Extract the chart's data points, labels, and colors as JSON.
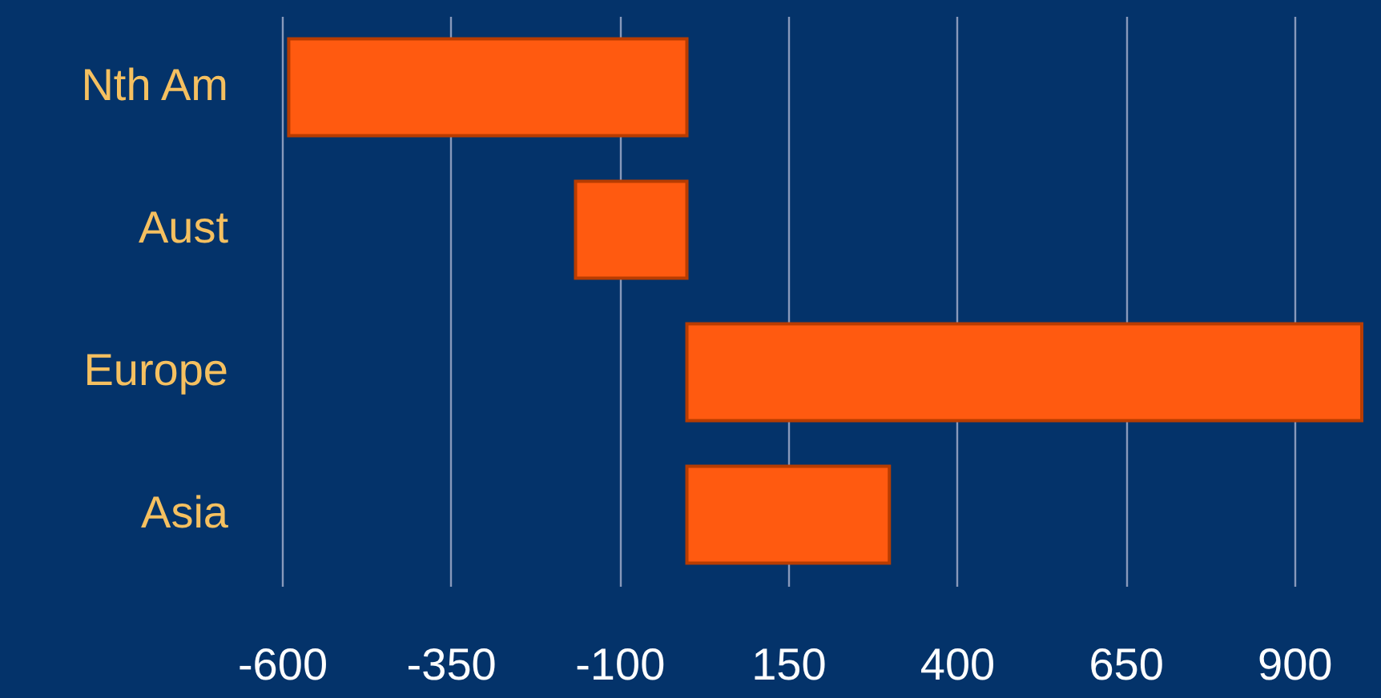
{
  "chart_data": {
    "type": "bar",
    "orientation": "horizontal",
    "categories": [
      "Nth Am",
      "Aust",
      "Europe",
      "Asia"
    ],
    "values": [
      -590,
      -165,
      1000,
      300
    ],
    "color": "#ff5a10",
    "xlim": [
      -600,
      1000
    ],
    "xticks": [
      -600,
      -350,
      -100,
      150,
      400,
      650,
      900
    ],
    "grid": "x"
  }
}
